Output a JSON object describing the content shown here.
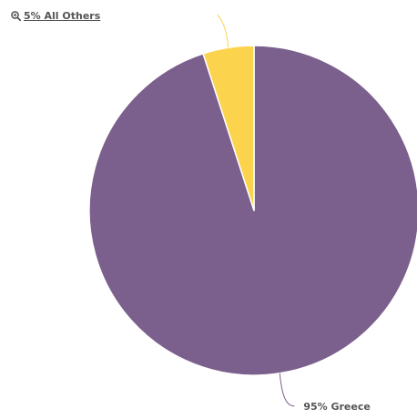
{
  "others_link": {
    "label": "5% All Others",
    "icon": "zoom-in-icon"
  },
  "chart_data": {
    "type": "pie",
    "slices": [
      {
        "label": "Greece",
        "value": 95,
        "display": "95% Greece",
        "color": "#7b5f8c"
      },
      {
        "label": "All Others",
        "value": 5,
        "display": "5% All Others",
        "color": "#fcd34d"
      }
    ]
  }
}
